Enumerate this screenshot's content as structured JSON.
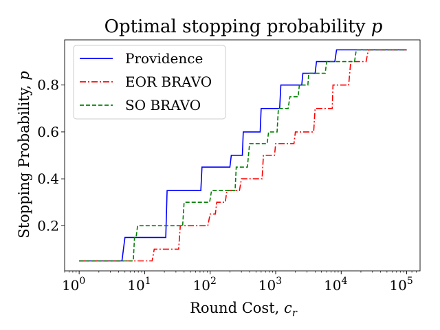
{
  "chart_data": {
    "type": "line",
    "title_text": "Optimal stopping probability ",
    "title_var": "p",
    "ylabel_text": "Stopping Probability, ",
    "ylabel_var": "p",
    "xlabel_text": "Round Cost, ",
    "xlabel_var": "c",
    "xlabel_sub": "r",
    "x_scale": "log",
    "xlim": [
      0.6,
      160000
    ],
    "ylim": [
      0.0075,
      0.9925
    ],
    "grid": false,
    "legend_position": "top-left",
    "x_ticks": [
      {
        "value": 1,
        "base": "10",
        "exp": "0"
      },
      {
        "value": 10,
        "base": "10",
        "exp": "1"
      },
      {
        "value": 100,
        "base": "10",
        "exp": "2"
      },
      {
        "value": 1000,
        "base": "10",
        "exp": "3"
      },
      {
        "value": 10000,
        "base": "10",
        "exp": "4"
      },
      {
        "value": 100000,
        "base": "10",
        "exp": "5"
      }
    ],
    "y_ticks": [
      {
        "value": 0.2,
        "label": "0.2"
      },
      {
        "value": 0.4,
        "label": "0.4"
      },
      {
        "value": 0.6,
        "label": "0.6"
      },
      {
        "value": 0.8,
        "label": "0.8"
      }
    ],
    "series": [
      {
        "name": "Providence",
        "color": "#0000ff",
        "dash": "solid",
        "x": [
          1,
          4.5,
          5,
          21,
          22,
          72,
          75,
          200,
          210,
          310,
          320,
          580,
          600,
          1150,
          1200,
          2500,
          2600,
          4000,
          4200,
          8000,
          8500,
          100000
        ],
        "y": [
          0.05,
          0.05,
          0.15,
          0.15,
          0.35,
          0.35,
          0.45,
          0.45,
          0.5,
          0.5,
          0.6,
          0.6,
          0.7,
          0.7,
          0.8,
          0.8,
          0.85,
          0.85,
          0.9,
          0.9,
          0.95,
          0.95
        ]
      },
      {
        "name": "EOR BRAVO",
        "color": "#ff0000",
        "dash": "dashdot",
        "x": [
          1,
          13,
          14,
          33,
          35,
          92,
          100,
          120,
          126,
          170,
          180,
          280,
          300,
          620,
          650,
          960,
          1000,
          1900,
          2000,
          3800,
          4000,
          7300,
          7500,
          13000,
          14000,
          24000,
          26000,
          100000
        ],
        "y": [
          0.05,
          0.05,
          0.1,
          0.1,
          0.2,
          0.2,
          0.25,
          0.25,
          0.3,
          0.3,
          0.35,
          0.35,
          0.4,
          0.4,
          0.5,
          0.5,
          0.55,
          0.55,
          0.6,
          0.6,
          0.7,
          0.7,
          0.8,
          0.8,
          0.9,
          0.9,
          0.95,
          0.95
        ]
      },
      {
        "name": "SO BRAVO",
        "color": "#008000",
        "dash": "dashed",
        "x": [
          1,
          6.7,
          7,
          7.4,
          7.8,
          38,
          40,
          98,
          105,
          240,
          250,
          370,
          400,
          740,
          780,
          1050,
          1100,
          1550,
          1650,
          2200,
          2300,
          3100,
          3200,
          5700,
          6000,
          16000,
          17000,
          100000
        ],
        "y": [
          0.05,
          0.05,
          0.15,
          0.15,
          0.2,
          0.2,
          0.3,
          0.3,
          0.35,
          0.35,
          0.45,
          0.45,
          0.55,
          0.55,
          0.6,
          0.6,
          0.7,
          0.7,
          0.75,
          0.75,
          0.8,
          0.8,
          0.85,
          0.85,
          0.9,
          0.9,
          0.95,
          0.95
        ]
      }
    ]
  }
}
